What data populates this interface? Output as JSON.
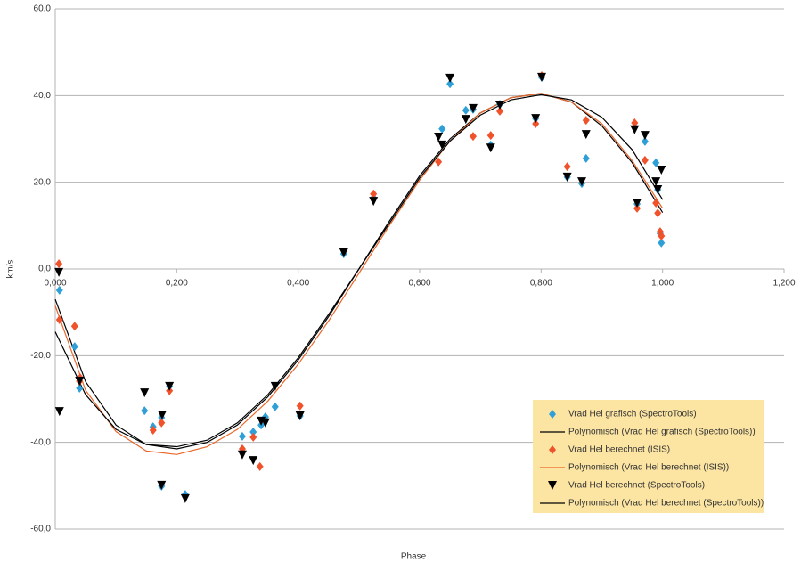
{
  "chart_data": {
    "type": "scatter",
    "x_label": "Phase",
    "y_label": "km/s",
    "xlim": [
      0,
      1.2
    ],
    "ylim": [
      -60,
      60
    ],
    "xticks": [
      {
        "value": 0,
        "label": "0,000"
      },
      {
        "value": 0.2,
        "label": "0,200"
      },
      {
        "value": 0.4,
        "label": "0,400"
      },
      {
        "value": 0.6,
        "label": "0,600"
      },
      {
        "value": 0.8,
        "label": "0,800"
      },
      {
        "value": 1.0,
        "label": "1,000"
      },
      {
        "value": 1.2,
        "label": "1,200"
      }
    ],
    "yticks": [
      {
        "value": -60,
        "label": "-60,0"
      },
      {
        "value": -40,
        "label": "-40,0"
      },
      {
        "value": -20,
        "label": "-20,0"
      },
      {
        "value": 0,
        "label": "0,0"
      },
      {
        "value": 20,
        "label": "20,0"
      },
      {
        "value": 40,
        "label": "40,0"
      },
      {
        "value": 60,
        "label": "60,0"
      }
    ],
    "grid": true,
    "legend_position": "lower-right",
    "legend_background": "#fce5a3",
    "series": [
      {
        "name": "Vrad Hel grafisch (SpectroTools)",
        "color": "#2f9fd8",
        "marker": "diamond",
        "x": [
          0.007,
          0.032,
          0.04,
          0.147,
          0.161,
          0.175,
          0.175,
          0.188,
          0.214,
          0.308,
          0.326,
          0.339,
          0.346,
          0.362,
          0.403,
          0.475,
          0.524,
          0.637,
          0.65,
          0.676,
          0.688,
          0.717,
          0.732,
          0.791,
          0.801,
          0.843,
          0.867,
          0.874,
          0.954,
          0.958,
          0.971,
          0.989,
          0.992,
          0.996,
          0.998
        ],
        "values": [
          -4.9,
          -17.9,
          -27.5,
          -32.7,
          -36.4,
          -34.3,
          -50.1,
          -27.1,
          -52.0,
          -38.6,
          -37.6,
          -36.0,
          -34.1,
          -31.8,
          -33.9,
          3.5,
          16.4,
          32.3,
          42.7,
          36.6,
          36.8,
          28.6,
          38.0,
          34.7,
          44.2,
          21.2,
          19.7,
          25.5,
          32.7,
          15.0,
          29.4,
          24.5,
          18.3,
          8.2,
          6.0
        ]
      },
      {
        "name": "Polynomisch (Vrad Hel grafisch (SpectroTools))",
        "color": "#000000",
        "marker": "line",
        "x": [
          0,
          0.05,
          0.1,
          0.15,
          0.2,
          0.25,
          0.3,
          0.35,
          0.4,
          0.45,
          0.5,
          0.55,
          0.6,
          0.65,
          0.7,
          0.75,
          0.8,
          0.85,
          0.9,
          0.95,
          1.0
        ],
        "values": [
          -7,
          -26,
          -36,
          -40.5,
          -41.5,
          -40,
          -36,
          -29.5,
          -21,
          -11,
          0,
          11,
          21.5,
          30,
          36,
          39.5,
          40.5,
          38.5,
          33,
          24.5,
          13
        ]
      },
      {
        "name": "Vrad Hel berechnet (ISIS)",
        "color": "#f0522b",
        "marker": "diamond",
        "x": [
          0.006,
          0.007,
          0.032,
          0.04,
          0.041,
          0.161,
          0.175,
          0.188,
          0.308,
          0.326,
          0.337,
          0.403,
          0.524,
          0.631,
          0.688,
          0.717,
          0.732,
          0.791,
          0.801,
          0.843,
          0.874,
          0.954,
          0.958,
          0.971,
          0.989,
          0.992,
          0.996,
          0.998
        ],
        "values": [
          1.2,
          -11.7,
          -13.2,
          -25.9,
          -25.1,
          -37.2,
          -35.5,
          -28.1,
          -41.5,
          -38.8,
          -45.6,
          -31.6,
          17.3,
          24.7,
          30.6,
          30.8,
          36.4,
          33.5,
          44.6,
          23.6,
          34.3,
          33.7,
          14.0,
          25.1,
          15.2,
          12.9,
          8.6,
          7.6
        ]
      },
      {
        "name": "Polynomisch (Vrad Hel berechnet (ISIS))",
        "color": "#e8682c",
        "marker": "line",
        "x": [
          0,
          0.05,
          0.1,
          0.15,
          0.2,
          0.25,
          0.3,
          0.35,
          0.4,
          0.45,
          0.5,
          0.55,
          0.6,
          0.65,
          0.7,
          0.75,
          0.8,
          0.85,
          0.9,
          0.95,
          1.0
        ],
        "values": [
          -8.5,
          -28,
          -37.5,
          -42,
          -42.8,
          -41,
          -37,
          -30.5,
          -22,
          -12,
          -1,
          10,
          20.5,
          29.5,
          36,
          39.5,
          40.5,
          38.5,
          33.5,
          25,
          14
        ]
      },
      {
        "name": "Vrad Hel berechnet (SpectroTools)",
        "color": "#000000",
        "marker": "triangle-down",
        "x": [
          0.006,
          0.007,
          0.04,
          0.147,
          0.176,
          0.175,
          0.188,
          0.214,
          0.308,
          0.326,
          0.339,
          0.346,
          0.362,
          0.403,
          0.475,
          0.524,
          0.631,
          0.637,
          0.65,
          0.676,
          0.688,
          0.717,
          0.732,
          0.791,
          0.801,
          0.843,
          0.867,
          0.874,
          0.954,
          0.958,
          0.971,
          0.989,
          0.992,
          0.998
        ],
        "values": [
          -0.8,
          -32.9,
          -25.9,
          -28.6,
          -33.7,
          -49.9,
          -27.1,
          -53.0,
          -42.9,
          -44.2,
          -35.1,
          -35.5,
          -27.1,
          -33.9,
          3.7,
          15.6,
          30.4,
          28.6,
          44.0,
          34.5,
          37.0,
          27.9,
          37.8,
          34.7,
          44.2,
          21.2,
          20.1,
          31.0,
          32.1,
          15.2,
          30.8,
          20.1,
          18.3,
          22.8
        ]
      },
      {
        "name": "Polynomisch (Vrad Hel berechnet (SpectroTools))",
        "color": "#000000",
        "marker": "line",
        "x": [
          0,
          0.05,
          0.1,
          0.15,
          0.2,
          0.25,
          0.3,
          0.35,
          0.4,
          0.45,
          0.5,
          0.55,
          0.6,
          0.65,
          0.7,
          0.75,
          0.8,
          0.85,
          0.9,
          0.95,
          1.0
        ],
        "values": [
          -14.5,
          -29,
          -37,
          -40.5,
          -41,
          -39.5,
          -35.5,
          -29,
          -20.5,
          -10.5,
          0,
          10.5,
          21,
          29.5,
          35.5,
          39,
          40.2,
          39,
          35,
          27.5,
          16
        ]
      }
    ]
  }
}
